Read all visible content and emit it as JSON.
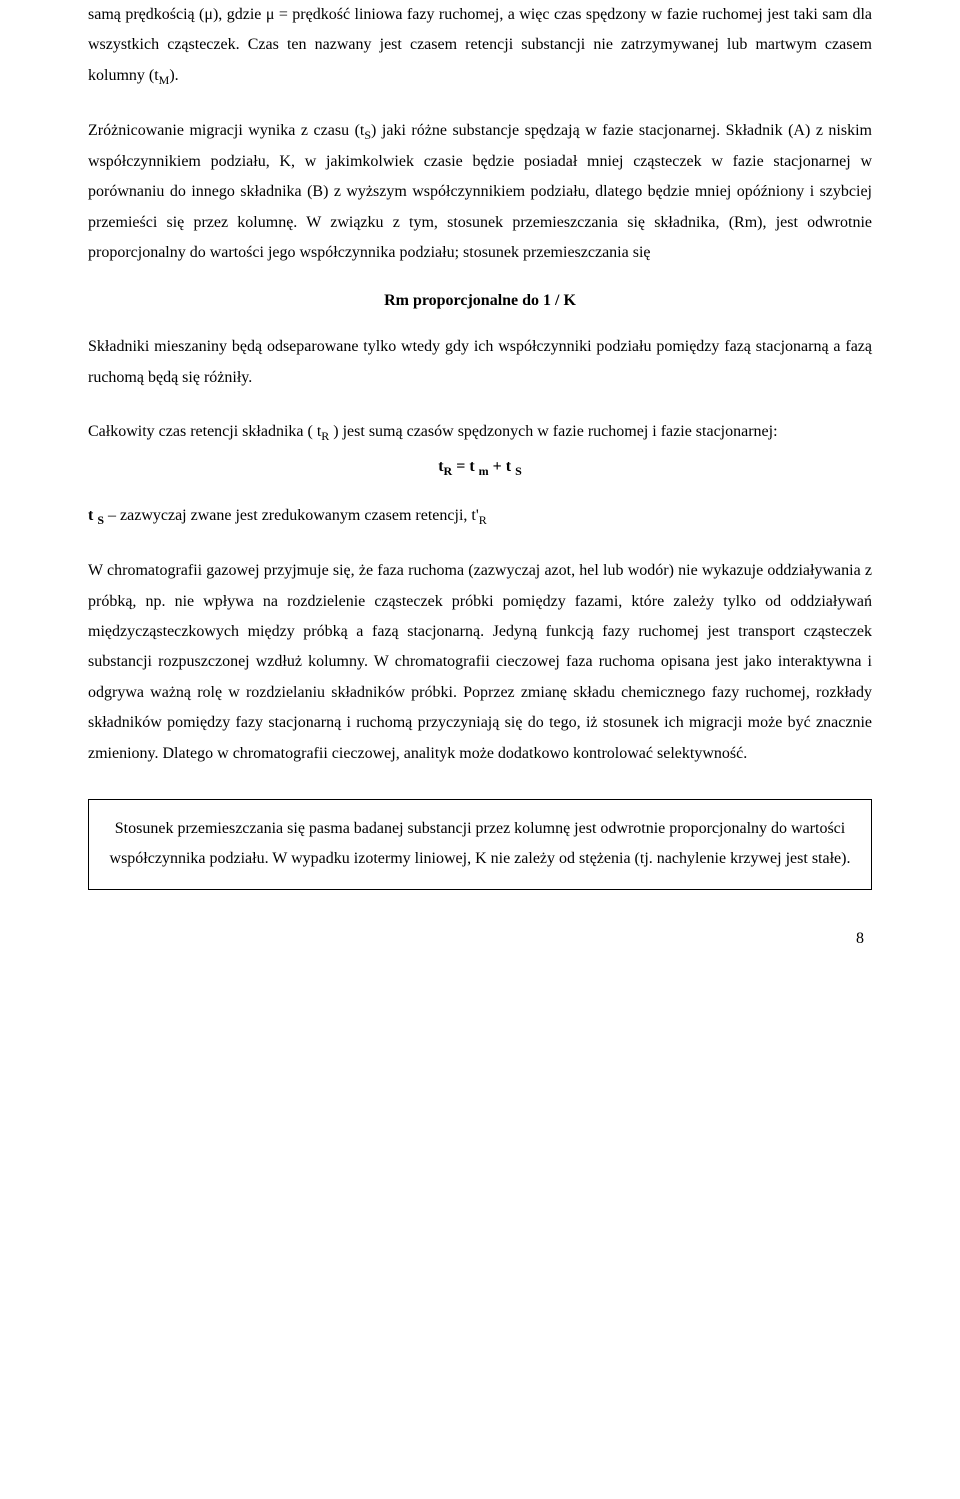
{
  "p1": "samą prędkością (μ), gdzie μ = prędkość liniowa fazy ruchomej, a więc czas spędzony w fazie ruchomej jest taki sam dla wszystkich cząsteczek. Czas ten nazwany jest czasem retencji substancji nie zatrzymywanej lub martwym czasem kolumny (t",
  "p1_sub": "M",
  "p1_end": ").",
  "p2a": "Zróżnicowanie migracji wynika z czasu (t",
  "p2a_sub": "S",
  "p2b": ") jaki różne substancje spędzają w fazie stacjonarnej. Składnik (A) z niskim współczynnikiem podziału, K, w jakimkolwiek czasie będzie posiadał mniej cząsteczek w fazie stacjonarnej w porównaniu do innego składnika (B) z wyższym współczynnikiem podziału, dlatego będzie mniej opóźniony i szybciej przemieści się przez kolumnę. W związku z tym, stosunek przemieszczania się składnika, (Rm), jest odwrotnie proporcjonalny do wartości jego współczynnika podziału; stosunek przemieszczania się",
  "formula1": "Rm  proporcjonalne  do  1 / K",
  "p3": "Składniki mieszaniny będą odseparowane tylko wtedy gdy ich współczynniki podziału pomiędzy fazą stacjonarną a fazą ruchomą będą się różniły.",
  "p4a": "Całkowity czas retencji składnika ( t",
  "p4a_sub": "R",
  "p4b": " )  jest  sumą czasów spędzonych w fazie ruchomej i fazie stacjonarnej:",
  "formula2_t1": "t",
  "formula2_sub1": "R",
  "formula2_eq": " = t ",
  "formula2_sub2": "m",
  "formula2_plus": " + t ",
  "formula2_sub3": "S",
  "p5a": "t ",
  "p5a_sub": "S",
  "p5b": " – zazwyczaj zwane jest zredukowanym czasem retencji, t'",
  "p5b_sub": "R",
  "p6a": "W chromatografii gazowej przyjmuje się, że faza ruchoma (zazwyczaj azot, hel lub wodór) nie wykazuje oddziaływania z próbką, np. nie wpływa na rozdzielenie cząsteczek próbki pomiędzy fazami, które zależy tylko od oddziaływań międzycząsteczkowych między próbką a fazą stacjonarną. Jedyną funkcją fazy ruchomej jest transport cząsteczek substancji rozpuszczonej wzdłuż kolumny. W chromatografii cieczowej faza ruchoma opisana jest jako interaktywna i odgrywa ważną rolę w rozdzielaniu składników próbki. Poprzez zmianę składu chemicznego fazy ruchomej, rozkłady składników pomiędzy fazy stacjonarną i ruchomą przyczyniają się do tego, iż stosunek ich migracji może być znacznie zmieniony. Dlatego w chromatografii cieczowej, analityk może dodatkowo kontrolować selektywność.",
  "box": "Stosunek przemieszczania się pasma badanej substancji przez kolumnę jest odwrotnie proporcjonalny do wartości współczynnika podziału. W wypadku izotermy liniowej, K nie zależy od stężenia (tj. nachylenie krzywej jest stałe).",
  "page_num": "8"
}
